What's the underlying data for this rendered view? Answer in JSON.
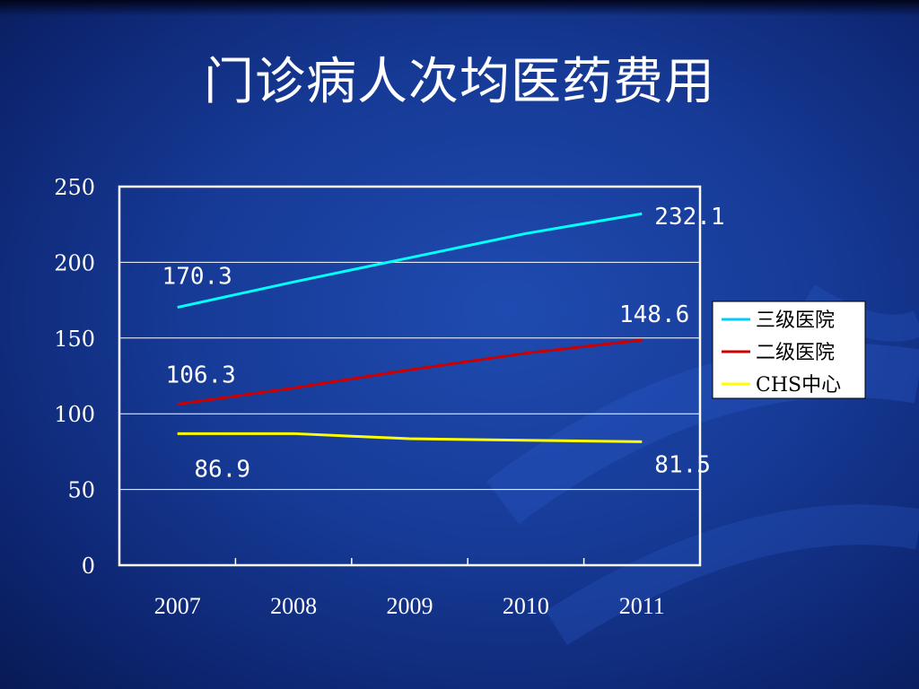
{
  "slide": {
    "title": "门诊病人次均医药费用"
  },
  "colors": {
    "background": "#163a96",
    "plot_border": "#ffffff",
    "grid": "#ffffff",
    "text": "#ffffff",
    "legend_bg": "#ffffff",
    "legend_text": "#000000"
  },
  "chart_data": {
    "type": "line",
    "title": "",
    "xlabel": "",
    "ylabel": "",
    "categories": [
      "2007",
      "2008",
      "2009",
      "2010",
      "2011"
    ],
    "ylim": [
      0,
      250
    ],
    "yticks": [
      0,
      50,
      100,
      150,
      200,
      250
    ],
    "grid": true,
    "legend_position": "right",
    "series": [
      {
        "name": "三级医院",
        "color": "#00ffff",
        "values": [
          170.3,
          187,
          203,
          219,
          232.1
        ],
        "labels": [
          {
            "index": 0,
            "text": "170.3"
          },
          {
            "index": 4,
            "text": "232.1"
          }
        ]
      },
      {
        "name": "二级医院",
        "color": "#cc0000",
        "values": [
          106.3,
          117,
          129,
          140,
          148.6
        ],
        "labels": [
          {
            "index": 0,
            "text": "106.3"
          },
          {
            "index": 4,
            "text": "148.6"
          }
        ]
      },
      {
        "name": "CHS中心",
        "color": "#ffff00",
        "values": [
          86.9,
          86.9,
          83.5,
          82.5,
          81.5
        ],
        "labels": [
          {
            "index": 0,
            "text": "86.9"
          },
          {
            "index": 4,
            "text": "81.5"
          }
        ]
      }
    ]
  }
}
